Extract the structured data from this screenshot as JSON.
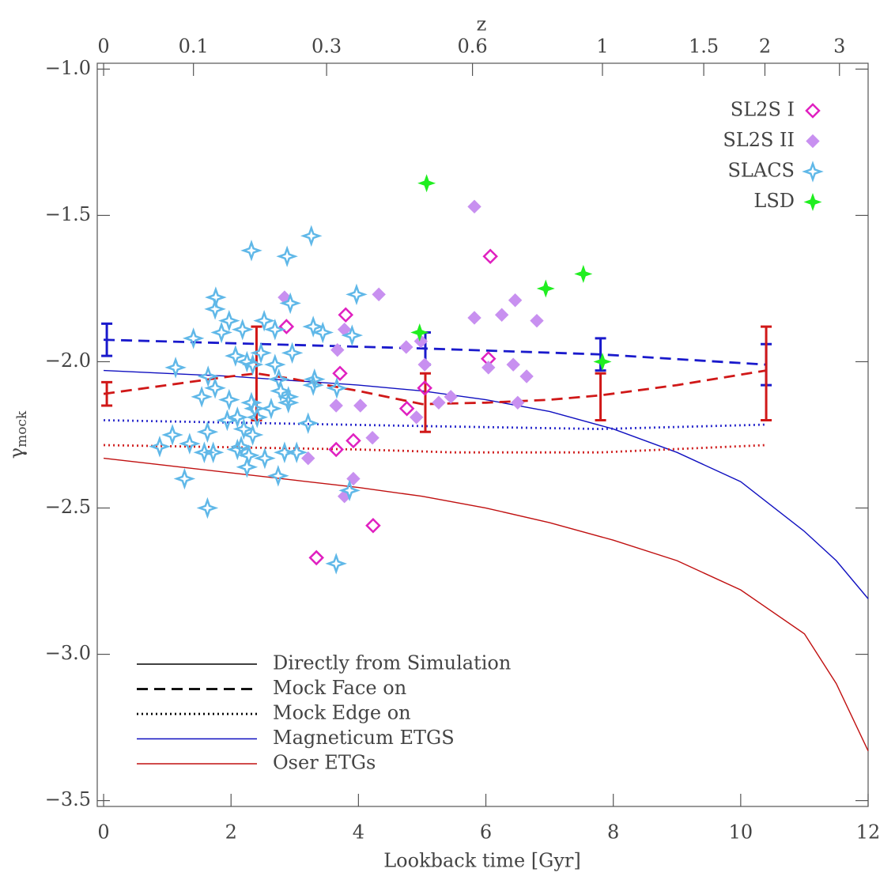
{
  "chart_data": {
    "type": "scatter",
    "x_label": "Lookback time [Gyr]",
    "x2_label": "z",
    "y_label": "γ",
    "y_label_sub": "mock",
    "xlim": [
      -0.1,
      12
    ],
    "ylim": [
      -3.52,
      -0.98
    ],
    "xticks": [
      0,
      2,
      4,
      6,
      8,
      10,
      12
    ],
    "x2ticks": [
      0,
      {
        "value": 1.41,
        "label": "0.1"
      },
      {
        "value": 3.5,
        "label": "0.3"
      },
      {
        "value": 5.79,
        "label": "0.6"
      },
      {
        "value": 7.83,
        "label": "1"
      },
      {
        "value": 9.42,
        "label": "1.5"
      },
      {
        "value": 10.38,
        "label": "2"
      },
      {
        "value": 11.55,
        "label": "3"
      }
    ],
    "yticks": [
      {
        "value": -1.0,
        "label": "−1.0"
      },
      {
        "value": -1.5,
        "label": "−1.5"
      },
      {
        "value": -2.0,
        "label": "−2.0"
      },
      {
        "value": -2.5,
        "label": "−2.5"
      },
      {
        "value": -3.0,
        "label": "−3.0"
      },
      {
        "value": -3.5,
        "label": "−3.5"
      }
    ],
    "legend": "top-right",
    "line_legend": [
      {
        "label": "Directly from Simulation",
        "color": "#000000",
        "dash": "solid"
      },
      {
        "label": "Mock Face on",
        "color": "#000000",
        "dash": "dashed"
      },
      {
        "label": "Mock Edge on",
        "color": "#000000",
        "dash": "dotted"
      },
      {
        "label": "Magneticum ETGS",
        "color": "#1010c0",
        "dash": "solid"
      },
      {
        "label": "Oser ETGs",
        "color": "#c01010",
        "dash": "solid"
      }
    ],
    "series": [
      {
        "type": "line",
        "color": "#1010c0",
        "dash": "solid",
        "x": [
          0,
          1,
          2,
          3,
          4,
          5,
          6,
          7,
          8,
          9,
          10,
          11,
          11.5,
          12
        ],
        "values": [
          -2.03,
          -2.04,
          -2.05,
          -2.065,
          -2.08,
          -2.1,
          -2.13,
          -2.17,
          -2.23,
          -2.31,
          -2.41,
          -2.58,
          -2.68,
          -2.81
        ]
      },
      {
        "type": "line",
        "color": "#c01010",
        "dash": "solid",
        "x": [
          0,
          1,
          2,
          3,
          4,
          5,
          6,
          7,
          8,
          9,
          10,
          11,
          11.5,
          12
        ],
        "values": [
          -2.33,
          -2.355,
          -2.38,
          -2.405,
          -2.43,
          -2.46,
          -2.5,
          -2.55,
          -2.61,
          -2.68,
          -2.78,
          -2.93,
          -3.1,
          -3.33
        ]
      },
      {
        "type": "line",
        "color": "#1a1acc",
        "dash": "dashed",
        "x": [
          0,
          5.05,
          7.8,
          10.4
        ],
        "values": [
          -1.925,
          -1.955,
          -1.975,
          -2.01
        ]
      },
      {
        "type": "line",
        "color": "#d01818",
        "dash": "dashed",
        "x": [
          0,
          1,
          2,
          2.4,
          3,
          4,
          5,
          6,
          7,
          7.8,
          9,
          10.4
        ],
        "values": [
          -2.11,
          -2.08,
          -2.05,
          -2.04,
          -2.06,
          -2.1,
          -2.145,
          -2.14,
          -2.13,
          -2.115,
          -2.08,
          -2.03
        ]
      },
      {
        "type": "line",
        "color": "#2a2acc",
        "dash": "dotted",
        "x": [
          0,
          5,
          7.8,
          10.4
        ],
        "values": [
          -2.2,
          -2.22,
          -2.23,
          -2.215
        ]
      },
      {
        "type": "line",
        "color": "#d02020",
        "dash": "dotted",
        "x": [
          0,
          4,
          5.5,
          7.8,
          10.4
        ],
        "values": [
          -2.285,
          -2.3,
          -2.31,
          -2.31,
          -2.285
        ]
      },
      {
        "type": "errorbar",
        "color": "#1a1acc",
        "x": [
          0.05,
          5.05,
          7.8,
          10.4
        ],
        "values": [
          -1.925,
          -1.955,
          -1.975,
          -2.01
        ],
        "errors": [
          0.055,
          0.055,
          0.055,
          0.07
        ]
      },
      {
        "type": "errorbar",
        "color": "#d01818",
        "x": [
          0.05,
          2.4,
          5.05,
          7.8,
          10.4
        ],
        "values": [
          -2.11,
          -2.04,
          -2.14,
          -2.12,
          -2.04
        ],
        "errors": [
          0.04,
          0.16,
          0.1,
          0.08,
          0.16
        ]
      },
      {
        "type": "scatter",
        "name": "SL2S I",
        "marker": "open-diamond",
        "color": "#e020c0",
        "x": [
          2.87,
          3.8,
          3.71,
          3.65,
          3.92,
          3.34,
          4.23,
          4.76,
          5.04,
          6.04,
          6.07
        ],
        "values": [
          -1.88,
          -1.84,
          -2.04,
          -2.3,
          -2.27,
          -2.67,
          -2.56,
          -2.16,
          -2.09,
          -1.99,
          -1.64
        ]
      },
      {
        "type": "scatter",
        "name": "SL2S II",
        "marker": "diamond",
        "color": "#c890f0",
        "x": [
          5.82,
          2.84,
          4.32,
          3.78,
          3.67,
          4.75,
          4.98,
          5.04,
          5.82,
          6.25,
          6.46,
          6.8,
          6.43,
          6.64,
          6.04,
          6.5,
          5.45,
          5.26,
          4.91,
          3.65,
          4.03,
          4.22,
          3.21,
          3.92,
          3.78
        ],
        "values": [
          -1.47,
          -1.78,
          -1.77,
          -1.89,
          -1.96,
          -1.95,
          -1.93,
          -2.01,
          -1.85,
          -1.84,
          -1.79,
          -1.86,
          -2.01,
          -2.05,
          -2.02,
          -2.14,
          -2.12,
          -2.14,
          -2.19,
          -2.15,
          -2.15,
          -2.26,
          -2.33,
          -2.4,
          -2.46
        ]
      },
      {
        "type": "scatter",
        "name": "SLACS",
        "marker": "open-star",
        "color": "#60b8e8",
        "x": [
          2.32,
          3.26,
          2.88,
          2.93,
          3.97,
          1.76,
          1.75,
          1.85,
          1.97,
          2.18,
          2.52,
          1.41,
          1.13,
          2.07,
          2.25,
          2.34,
          2.47,
          2.69,
          2.69,
          2.63,
          2.75,
          2.78,
          2.96,
          3.29,
          3.44,
          3.9,
          3.31,
          3.29,
          3.66,
          2.9,
          2.9,
          1.64,
          1.75,
          1.54,
          1.97,
          2.32,
          2.37,
          2.41,
          1.94,
          2.1,
          2.2,
          2.34,
          3.21,
          1.08,
          0.88,
          1.35,
          1.58,
          1.72,
          2.1,
          2.16,
          2.28,
          2.53,
          2.74,
          2.84,
          3.03,
          2.25,
          1.27,
          1.63,
          3.86,
          3.65,
          1.63
        ],
        "values": [
          -1.62,
          -1.57,
          -1.64,
          -1.8,
          -1.77,
          -1.78,
          -1.82,
          -1.9,
          -1.86,
          -1.89,
          -1.86,
          -1.92,
          -2.02,
          -1.98,
          -2.0,
          -2.01,
          -1.97,
          -1.89,
          -2.01,
          -2.16,
          -2.06,
          -2.1,
          -1.97,
          -1.88,
          -1.9,
          -1.91,
          -2.06,
          -2.08,
          -2.09,
          -2.12,
          -2.14,
          -2.05,
          -2.09,
          -2.12,
          -2.13,
          -2.14,
          -2.16,
          -2.19,
          -2.2,
          -2.19,
          -2.23,
          -2.25,
          -2.21,
          -2.25,
          -2.29,
          -2.28,
          -2.31,
          -2.31,
          -2.3,
          -2.29,
          -2.32,
          -2.33,
          -2.39,
          -2.31,
          -2.31,
          -2.36,
          -2.4,
          -2.5,
          -2.44,
          -2.69,
          -2.24
        ]
      },
      {
        "type": "scatter",
        "name": "LSD",
        "marker": "star",
        "color": "#20ee20",
        "x": [
          5.07,
          6.94,
          7.53,
          4.96,
          7.83
        ],
        "values": [
          -1.39,
          -1.75,
          -1.7,
          -1.9,
          -2.0
        ]
      }
    ]
  }
}
